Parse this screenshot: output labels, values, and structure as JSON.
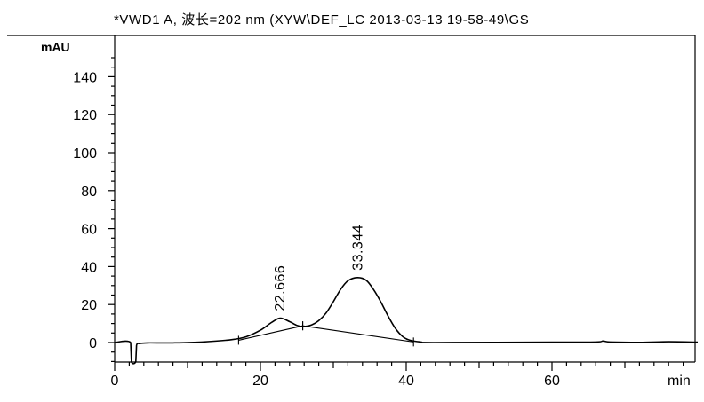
{
  "chart_data": {
    "type": "line",
    "title": "*VWD1 A, 波长=202 nm (XYW\\DEF_LC 2013-03-13 19-58-49\\GS",
    "ylabel": "mAU",
    "xlabel": "min",
    "xlim": [
      0,
      80
    ],
    "ylim": [
      -10,
      155
    ],
    "x_ticks": [
      0,
      20,
      40,
      60
    ],
    "y_ticks": [
      0,
      20,
      40,
      60,
      80,
      100,
      120,
      140
    ],
    "grid": false,
    "series": [
      {
        "values": [
          [
            0,
            0
          ],
          [
            2.2,
            0
          ],
          [
            2.3,
            -10
          ],
          [
            2.9,
            -10
          ],
          [
            3.0,
            -1.5
          ],
          [
            3.5,
            -0.5
          ],
          [
            4.5,
            -0.2
          ],
          [
            8,
            -0.2
          ],
          [
            12,
            0.3
          ],
          [
            16,
            1.5
          ],
          [
            18,
            3
          ],
          [
            20,
            6.5
          ],
          [
            21.5,
            10.5
          ],
          [
            22.7,
            12.8
          ],
          [
            24,
            11
          ],
          [
            25,
            9
          ],
          [
            26,
            8.4
          ],
          [
            27,
            9.2
          ],
          [
            28,
            11.5
          ],
          [
            29,
            15.5
          ],
          [
            30,
            21.5
          ],
          [
            31,
            28
          ],
          [
            32,
            32.5
          ],
          [
            33.3,
            34.2
          ],
          [
            34.5,
            32.8
          ],
          [
            35.5,
            28
          ],
          [
            36.5,
            21.5
          ],
          [
            37.5,
            14
          ],
          [
            38.5,
            7.5
          ],
          [
            39.5,
            3.2
          ],
          [
            40.5,
            1.2
          ],
          [
            42,
            0.3
          ],
          [
            44,
            0
          ],
          [
            60,
            0.2
          ],
          [
            66,
            0.3
          ],
          [
            67,
            0.8
          ],
          [
            68,
            0.3
          ],
          [
            72,
            0.1
          ],
          [
            76,
            0.4
          ],
          [
            80,
            0.2
          ]
        ]
      }
    ],
    "baselines": [
      [
        [
          17,
          1.2
        ],
        [
          25.8,
          8.8
        ]
      ],
      [
        [
          25.8,
          8.8
        ],
        [
          41,
          0.3
        ]
      ]
    ],
    "peaks": [
      {
        "label": "22.666",
        "x": 22.666,
        "y": 12.8
      },
      {
        "label": "33.344",
        "x": 33.344,
        "y": 34.2
      }
    ]
  }
}
